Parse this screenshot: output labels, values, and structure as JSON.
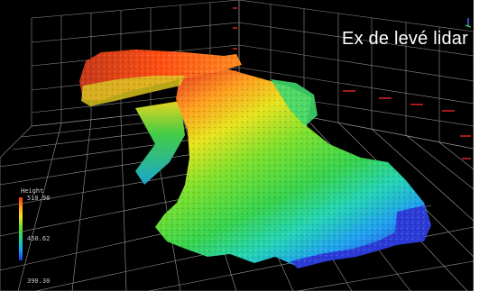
{
  "caption": "Ex de levé lidar",
  "legend": {
    "title": "Height",
    "max": "510.98",
    "mid": "450.62",
    "min": "390.30"
  },
  "colors": {
    "background": "#000000",
    "grid": "#8a8a8a",
    "high": "#ff2a10",
    "mid": "#55dd2a",
    "low": "#2236d8"
  }
}
